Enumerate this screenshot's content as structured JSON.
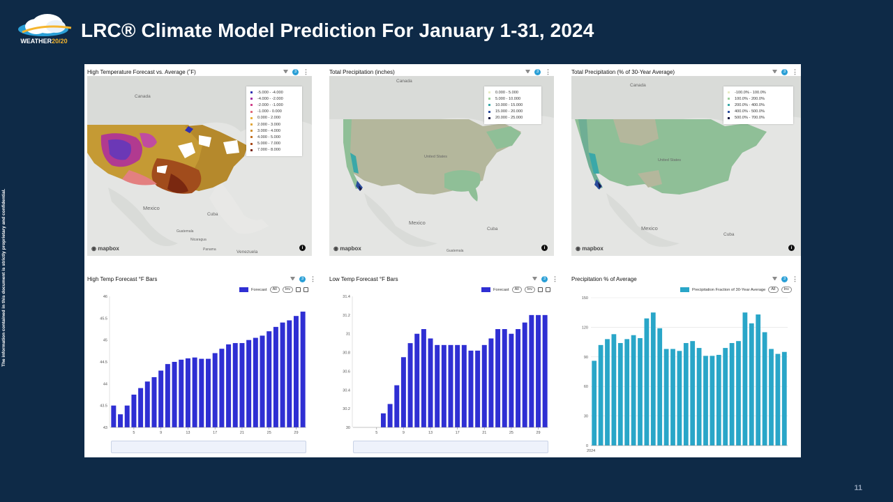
{
  "brand": {
    "logo_text_1": "WEATHER",
    "logo_text_2": "20/20"
  },
  "header": {
    "title": "LRC® Climate Model Prediction For January 1-31, 2024"
  },
  "side_note": "The information contained in this document is strictly proprietary and confidential.",
  "page_number": "11",
  "panels": {
    "map1": {
      "title": "High Temperature Forecast vs. Average (˚F)",
      "badge": "3",
      "labels": {
        "canada": "Canada",
        "mexico": "Mexico",
        "cuba": "Cuba",
        "guatemala": "Guatemala",
        "nicaragua": "Nicaragua",
        "panama": "Panama",
        "venezuela": "Venezuela"
      },
      "legend": [
        {
          "label": "-5.000 - -4.000",
          "color": "#2f2fb0"
        },
        {
          "label": "-4.000 - -2.000",
          "color": "#a02fa8"
        },
        {
          "label": "-2.000 - -1.000",
          "color": "#d0408a"
        },
        {
          "label": "-1.000 - 0.000",
          "color": "#e06a7a"
        },
        {
          "label": "0.000 - 2.000",
          "color": "#e9b13c"
        },
        {
          "label": "2.000 - 3.000",
          "color": "#e0a63a"
        },
        {
          "label": "3.000 - 4.000",
          "color": "#d09030"
        },
        {
          "label": "4.000 - 5.000",
          "color": "#c07024"
        },
        {
          "label": "5.000 - 7.000",
          "color": "#a84818"
        },
        {
          "label": "7.000 - 8.000",
          "color": "#7a2410"
        }
      ],
      "mapbox": "mapbox"
    },
    "map2": {
      "title": "Total Precipitation (inches)",
      "badge": "3",
      "labels": {
        "canada": "Canada",
        "us": "United States",
        "mexico": "Mexico",
        "cuba": "Cuba",
        "guatemala": "Guatemala"
      },
      "legend": [
        {
          "label": "0.000 - 5.000",
          "color": "#e8ecc4"
        },
        {
          "label": "5.000 - 10.000",
          "color": "#9ccf9a"
        },
        {
          "label": "10.000 - 15.000",
          "color": "#3aa8a8"
        },
        {
          "label": "15.000 - 20.000",
          "color": "#2a4c9c"
        },
        {
          "label": "20.000 - 25.000",
          "color": "#141440"
        }
      ],
      "mapbox": "mapbox"
    },
    "map3": {
      "title": "Total Precipitation (% of 30-Year Average)",
      "badge": "3",
      "labels": {
        "canada": "Canada",
        "us": "United States",
        "mexico": "Mexico",
        "cuba": "Cuba"
      },
      "legend": [
        {
          "label": "-100.0% - 100.0%",
          "color": "#e8ecc4"
        },
        {
          "label": "100.0% - 200.0%",
          "color": "#9ccf9a"
        },
        {
          "label": "200.0% - 400.0%",
          "color": "#3aa8a8"
        },
        {
          "label": "400.0% - 500.0%",
          "color": "#2a4c9c"
        },
        {
          "label": "500.0% - 700.0%",
          "color": "#141440"
        }
      ],
      "mapbox": "mapbox"
    },
    "bar1": {
      "title": "High Temp Forecast °F Bars",
      "badge": "3",
      "legend": "Forecast",
      "all": "All",
      "inv": "Inv"
    },
    "bar2": {
      "title": "Low Temp Forecast °F Bars",
      "badge": "3",
      "legend": "Forecast",
      "all": "All",
      "inv": "Inv"
    },
    "bar3": {
      "title": "Precipitation % of Average",
      "badge": "3",
      "legend": "Precipitation Fraction of 30-Year Average",
      "all": "All",
      "inv": "Inv"
    }
  },
  "chart_data": [
    {
      "type": "bar",
      "title": "High Temp Forecast °F Bars",
      "series_color": "#2f2fd3",
      "x": [
        2,
        3,
        4,
        5,
        6,
        7,
        8,
        9,
        10,
        11,
        12,
        13,
        14,
        15,
        16,
        17,
        18,
        19,
        20,
        21,
        22,
        23,
        24,
        25,
        26,
        27,
        28,
        29,
        30
      ],
      "x_ticks": [
        5,
        9,
        13,
        17,
        21,
        25,
        29
      ],
      "values": [
        43.5,
        43.3,
        43.5,
        43.75,
        43.9,
        44.05,
        44.15,
        44.3,
        44.45,
        44.5,
        44.55,
        44.58,
        44.6,
        44.57,
        44.57,
        44.7,
        44.8,
        44.9,
        44.93,
        44.93,
        45.0,
        45.05,
        45.1,
        45.2,
        45.3,
        45.4,
        45.45,
        45.55,
        45.65
      ],
      "ylim": [
        43,
        46
      ],
      "y_ticks": [
        43,
        43.5,
        44,
        44.5,
        45,
        45.5,
        46
      ]
    },
    {
      "type": "bar",
      "title": "Low Temp Forecast °F Bars",
      "series_color": "#2f2fd3",
      "x": [
        2,
        3,
        4,
        5,
        6,
        7,
        8,
        9,
        10,
        11,
        12,
        13,
        14,
        15,
        16,
        17,
        18,
        19,
        20,
        21,
        22,
        23,
        24,
        25,
        26,
        27,
        28,
        29,
        30
      ],
      "x_ticks": [
        5,
        9,
        13,
        17,
        21,
        25,
        29
      ],
      "values": [
        30,
        30,
        30,
        30,
        30.15,
        30.25,
        30.45,
        30.75,
        30.9,
        31.0,
        31.05,
        30.95,
        30.88,
        30.88,
        30.88,
        30.88,
        30.88,
        30.82,
        30.82,
        30.88,
        30.95,
        31.05,
        31.05,
        31.0,
        31.05,
        31.12,
        31.2,
        31.2,
        31.2
      ],
      "ylim": [
        30,
        31.4
      ],
      "y_ticks": [
        30,
        30.2,
        30.4,
        30.6,
        30.8,
        31,
        31.2,
        31.4
      ]
    },
    {
      "type": "bar",
      "title": "Precipitation % of Average",
      "series_color": "#29a6c8",
      "x_label": "2024",
      "values": [
        86,
        102,
        108,
        113,
        104,
        108,
        112,
        109,
        129,
        135,
        119,
        98,
        98,
        96,
        104,
        106,
        99,
        91,
        91,
        92,
        99,
        104,
        106,
        135,
        124,
        133,
        115,
        98,
        93,
        95
      ],
      "ylim": [
        0,
        150
      ],
      "y_ticks": [
        0,
        30,
        60,
        90,
        120,
        150
      ]
    }
  ]
}
